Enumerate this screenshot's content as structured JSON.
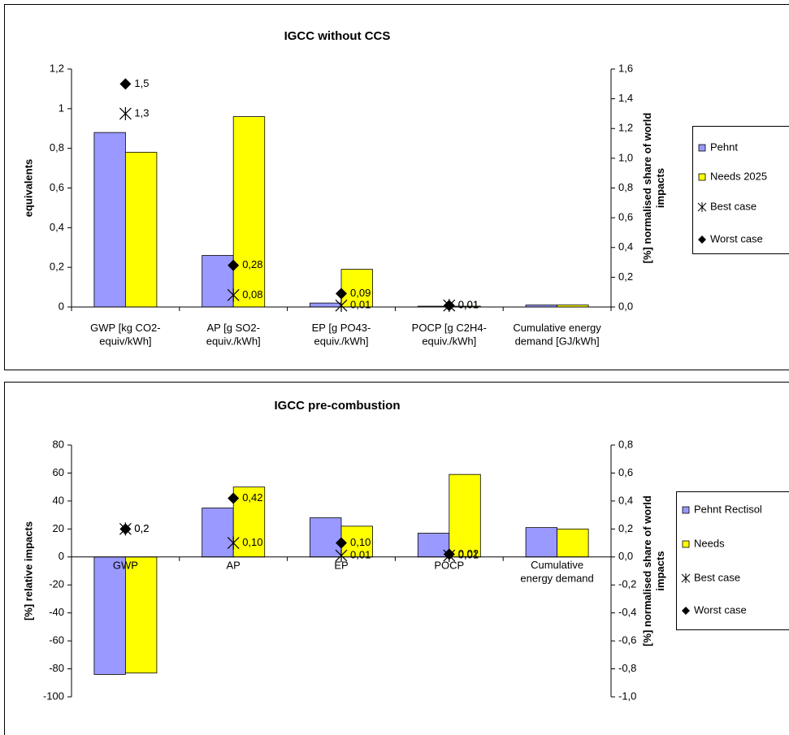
{
  "chart_data": [
    {
      "type": "bar",
      "title": "IGCC without CCS",
      "categories": [
        "GWP [kg CO2-\nequiv/kWh]",
        "AP [g SO2-\nequiv./kWh]",
        "EP [g PO43-\nequiv./kWh]",
        "POCP [g C2H4-\nequiv./kWh]",
        "Cumulative energy\ndemand [GJ/kWh]"
      ],
      "ylabel": "equivalents",
      "y2label": "[%] normalised share of world\nimpacts",
      "ylim": [
        0,
        1.2
      ],
      "yticks": [
        0,
        {
          "value": 0.2,
          "label": "0,2"
        },
        {
          "value": 0.4,
          "label": "0,4"
        },
        {
          "value": 0.6,
          "label": "0,6"
        },
        {
          "value": 0.8,
          "label": "0,8"
        },
        1,
        {
          "value": 1.2,
          "label": "1,2"
        }
      ],
      "y2lim": [
        0,
        1.6
      ],
      "y2ticks": [
        {
          "value": 0,
          "label": "0,0"
        },
        {
          "value": 0.2,
          "label": "0,2"
        },
        {
          "value": 0.4,
          "label": "0,4"
        },
        {
          "value": 0.6,
          "label": "0,6"
        },
        {
          "value": 0.8,
          "label": "0,8"
        },
        {
          "value": 1.0,
          "label": "1,0"
        },
        {
          "value": 1.2,
          "label": "1,2"
        },
        {
          "value": 1.4,
          "label": "1,4"
        },
        {
          "value": 1.6,
          "label": "1,6"
        }
      ],
      "legend": "right",
      "series": [
        {
          "name": "Pehnt",
          "color": "#9999ff",
          "values": [
            0.88,
            0.26,
            0.02,
            0.004,
            0.01
          ]
        },
        {
          "name": "Needs 2025",
          "color": "#ffff00",
          "values": [
            0.78,
            0.96,
            0.19,
            0.004,
            0.01
          ]
        },
        {
          "name": "Best case",
          "type": "scatter",
          "marker": "asterisk",
          "color": "#000000",
          "axis": "y2",
          "values": [
            1.3,
            0.08,
            0.01,
            0.01,
            null
          ],
          "value_labels": [
            "1,3",
            "0,08",
            "0,01",
            "0,01",
            null
          ]
        },
        {
          "name": "Worst case",
          "type": "scatter",
          "marker": "diamond",
          "color": "#000000",
          "axis": "y2",
          "values": [
            1.5,
            0.28,
            0.09,
            0.01,
            null
          ],
          "value_labels": [
            "1,5",
            "0,28",
            "0,09",
            "0,01",
            null
          ]
        }
      ]
    },
    {
      "type": "bar",
      "title": "IGCC pre-combustion",
      "categories": [
        "GWP",
        "AP",
        "EP",
        "POCP",
        "Cumulative\nenergy demand"
      ],
      "ylabel": "[%] relative impacts",
      "y2label": "[%] normalised share of world\nimpacts",
      "ylim": [
        -100,
        80
      ],
      "yticks": [
        -100,
        -80,
        -60,
        -40,
        -20,
        0,
        20,
        40,
        60,
        80
      ],
      "y2lim": [
        -1.0,
        0.8
      ],
      "y2ticks": [
        {
          "value": -1.0,
          "label": "-1,0"
        },
        {
          "value": -0.8,
          "label": "-0,8"
        },
        {
          "value": -0.6,
          "label": "-0,6"
        },
        {
          "value": -0.4,
          "label": "-0,4"
        },
        {
          "value": -0.2,
          "label": "-0,2"
        },
        {
          "value": 0,
          "label": "0,0"
        },
        {
          "value": 0.2,
          "label": "0,2"
        },
        {
          "value": 0.4,
          "label": "0,4"
        },
        {
          "value": 0.6,
          "label": "0,6"
        },
        {
          "value": 0.8,
          "label": "0,8"
        }
      ],
      "legend": "right",
      "series": [
        {
          "name": "Pehnt Rectisol",
          "color": "#9999ff",
          "values": [
            -84,
            35,
            28,
            17,
            21
          ]
        },
        {
          "name": "Needs",
          "color": "#ffff00",
          "values": [
            -83,
            50,
            22,
            59,
            20
          ]
        },
        {
          "name": "Best case",
          "type": "scatter",
          "marker": "asterisk",
          "color": "#000000",
          "axis": "y2",
          "values": [
            0.2,
            0.1,
            0.01,
            0.01,
            null
          ],
          "value_labels": [
            "0,2",
            "0,10",
            "0,01",
            "0,01",
            null
          ]
        },
        {
          "name": "Worst case",
          "type": "scatter",
          "marker": "diamond",
          "color": "#000000",
          "axis": "y2",
          "values": [
            0.2,
            0.42,
            0.1,
            0.02,
            null
          ],
          "value_labels": [
            "0,2",
            "0,42",
            "0,10",
            "0,02",
            null
          ]
        }
      ]
    }
  ]
}
